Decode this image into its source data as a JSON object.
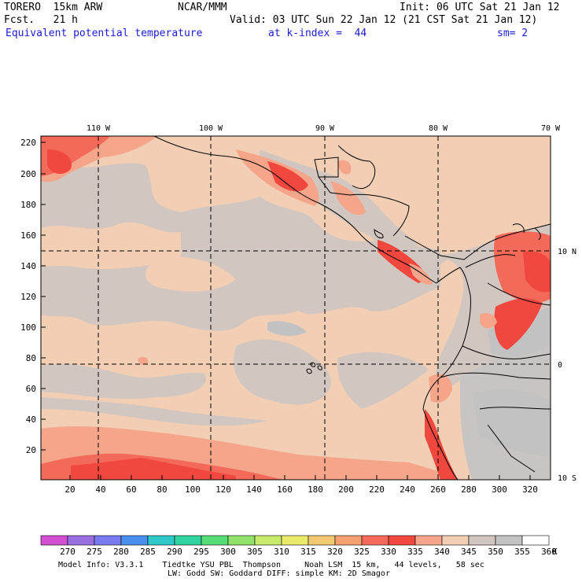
{
  "header": {
    "model": "TORERO  15km ARW",
    "center": "NCAR/MMM",
    "init": "Init: 06 UTC Sat 21 Jan 12",
    "fcst": "Fcst.   21 h",
    "valid": "Valid: 03 UTC Sun 22 Jan 12 (21 CST Sat 21 Jan 12)",
    "field": "Equivalent potential temperature",
    "level": "at k-index =  44",
    "smooth": "sm= 2"
  },
  "axes": {
    "top_lon_labels": [
      "110 W",
      "100 W",
      "90 W",
      "80 W",
      "70 W"
    ],
    "left_y_labels": [
      "220",
      "200",
      "180",
      "160",
      "140",
      "120",
      "100",
      "80",
      "60",
      "40",
      "20"
    ],
    "bottom_x_labels": [
      "20",
      "40",
      "60",
      "80",
      "100",
      "120",
      "140",
      "160",
      "180",
      "200",
      "220",
      "240",
      "260",
      "280",
      "300",
      "320"
    ],
    "right_lat_labels": [
      "10 N",
      "0",
      "10 S"
    ]
  },
  "colorbar": {
    "labels": [
      "270",
      "275",
      "280",
      "285",
      "290",
      "295",
      "300",
      "305",
      "310",
      "315",
      "320",
      "325",
      "330",
      "335",
      "340",
      "345",
      "350",
      "355",
      "360"
    ],
    "unit": "K",
    "colors": [
      "#d24fd2",
      "#9a6fe0",
      "#7a7af0",
      "#4a8ef0",
      "#2ec8c8",
      "#30d4a0",
      "#56dc76",
      "#90e26a",
      "#c8ea6a",
      "#eaea6a",
      "#f2c870",
      "#f4a070",
      "#f46a5a",
      "#f0473f",
      "#f5a58a",
      "#f2ceb4",
      "#d2c6c0",
      "#c2c2c2",
      "#ffffff"
    ]
  },
  "footer": {
    "line1": "Model Info: V3.3.1    Tiedtke YSU PBL  Thompson     Noah LSM  15 km,   44 levels,   58 sec",
    "line2": "LW: Godd SW: Goddard DIFF: simple KM: 2D Smagor"
  }
}
